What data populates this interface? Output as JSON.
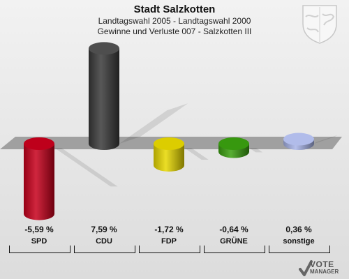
{
  "header": {
    "title": "Stadt Salzkotten",
    "subtitle1": "Landtagswahl 2005 - Landtagswahl 2000",
    "subtitle2": "Gewinne und Verluste 007 - Salzkotten III"
  },
  "chart_data": {
    "type": "bar",
    "title": "Stadt Salzkotten",
    "subtitle": "Landtagswahl 2005 - Landtagswahl 2000 / Gewinne und Verluste 007 - Salzkotten III",
    "categories": [
      "SPD",
      "CDU",
      "FDP",
      "GRÜNE",
      "sonstige"
    ],
    "values": [
      -5.59,
      7.59,
      -1.72,
      -0.64,
      0.36
    ],
    "value_labels": [
      "-5,59 %",
      "7,59 %",
      "-1,72 %",
      "-0,64 %",
      "0,36 %"
    ],
    "colors": [
      "#c8001c",
      "#3a3a3a",
      "#e8d800",
      "#3aa010",
      "#a8b4e8"
    ],
    "grid": false,
    "legend": "none"
  },
  "branding": {
    "logo_line1": "VOTE",
    "logo_line2": "MANAGER"
  }
}
